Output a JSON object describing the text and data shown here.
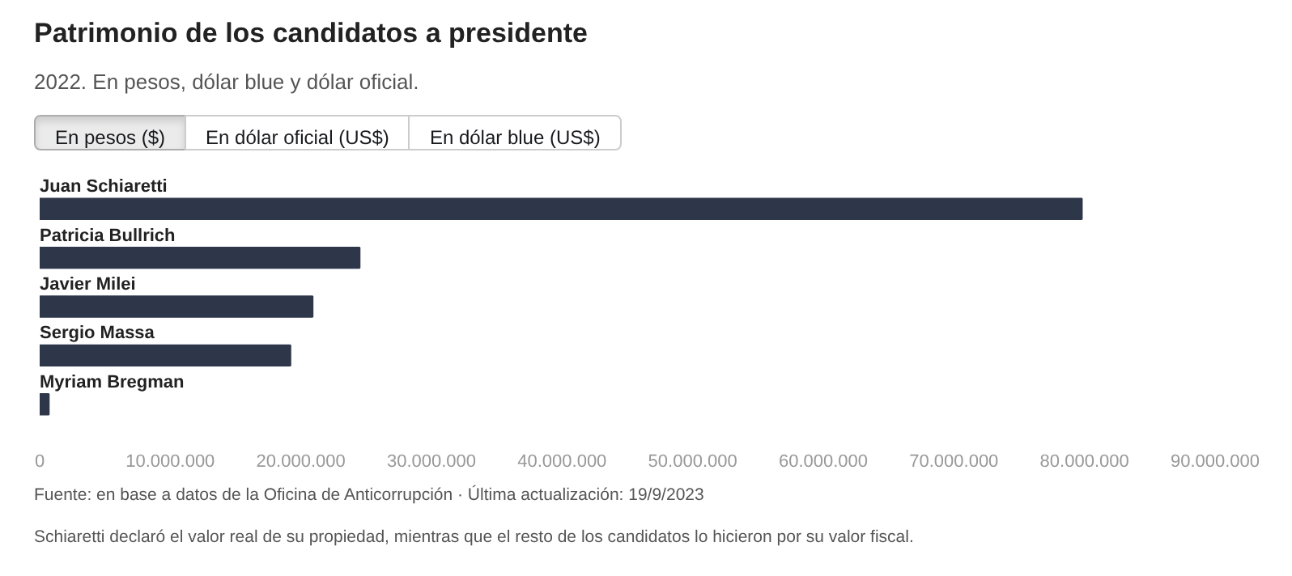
{
  "chart_data": {
    "type": "bar",
    "orientation": "horizontal",
    "title": "Patrimonio de los candidatos a presidente",
    "subtitle": "2022. En pesos, dólar blue y dólar oficial.",
    "categories": [
      "Juan Schiaretti",
      "Patricia Bullrich",
      "Javier Milei",
      "Sergio Massa",
      "Myriam Bregman"
    ],
    "values": [
      79800000,
      24500000,
      20900000,
      19200000,
      700000
    ],
    "color": "#2e3749",
    "xlim": [
      0,
      90000000
    ],
    "xticks": [
      {
        "value": 0,
        "label": "0"
      },
      {
        "value": 10000000,
        "label": "10.000.000"
      },
      {
        "value": 20000000,
        "label": "20.000.000"
      },
      {
        "value": 30000000,
        "label": "30.000.000"
      },
      {
        "value": 40000000,
        "label": "40.000.000"
      },
      {
        "value": 50000000,
        "label": "50.000.000"
      },
      {
        "value": 60000000,
        "label": "60.000.000"
      },
      {
        "value": 70000000,
        "label": "70.000.000"
      },
      {
        "value": 80000000,
        "label": "80.000.000"
      },
      {
        "value": 90000000,
        "label": "90.000.000"
      }
    ],
    "tick_labels": "x",
    "annotations": [
      "En pesos ($)",
      "En dólar oficial (US$)",
      "En dólar blue (US$)",
      "Fuente: en base a datos de la Oficina de Anticorrupción · Última actualización: 19/9/2023",
      "Schiaretti declaró el valor real de su propiedad, mientras que el resto de los candidatos lo hicieron por su valor fiscal."
    ]
  }
}
